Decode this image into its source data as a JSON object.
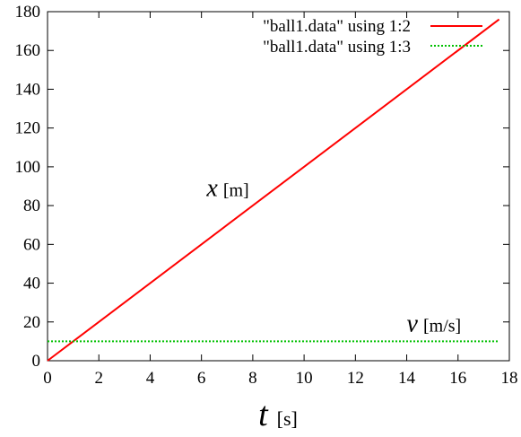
{
  "chart_data": {
    "type": "line",
    "title": "",
    "xlabel": {
      "symbol": "t",
      "unit": "[s]"
    },
    "ylabel": "",
    "xlim": [
      0,
      18
    ],
    "ylim": [
      0,
      180
    ],
    "xticks": [
      0,
      2,
      4,
      6,
      8,
      10,
      12,
      14,
      16,
      18
    ],
    "yticks": [
      0,
      20,
      40,
      60,
      80,
      100,
      120,
      140,
      160,
      180
    ],
    "grid": false,
    "legend_position": "top-right",
    "series": [
      {
        "name": "\"ball1.data\" using 1:2",
        "color": "#ff0000",
        "x": [
          0,
          17.6
        ],
        "y": [
          0,
          176
        ]
      },
      {
        "name": "\"ball1.data\" using 1:3",
        "color": "#00c000",
        "dashed": true,
        "x": [
          0,
          17.6
        ],
        "y": [
          10,
          10
        ]
      }
    ],
    "annotations": [
      {
        "symbol": "x",
        "unit": "[m]",
        "x": 6.2,
        "y": 85
      },
      {
        "symbol": "v",
        "unit": "[m/s]",
        "x": 14,
        "y": 15
      }
    ]
  }
}
